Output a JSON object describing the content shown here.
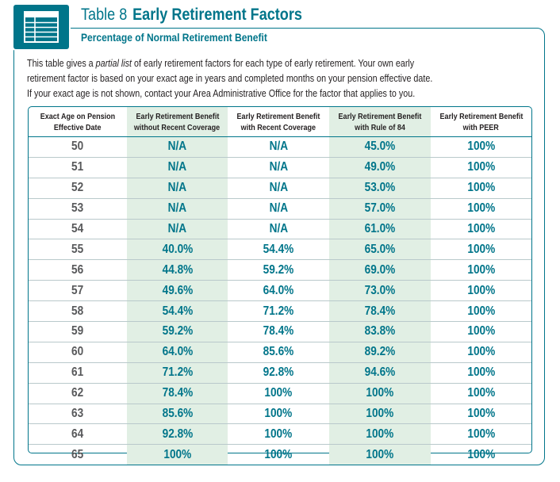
{
  "heading": {
    "table_number": "Table 8",
    "title": "Early Retirement Factors",
    "subtitle": "Percentage of Normal Retirement Benefit",
    "icon": "table-grid-icon"
  },
  "intro": {
    "line1_before": "This table gives a ",
    "line1_emphasis": "partial list",
    "line1_after": " of early retirement factors for each type of early retirement. Your own early",
    "line2": "retirement factor is based on your exact age in years and completed months on your pension effective date.",
    "line3": "If your exact age is not shown, contact your Area Administrative Office for the factor that applies to you."
  },
  "table": {
    "headers": [
      [
        "Exact Age on Pension",
        "Effective Date"
      ],
      [
        "Early Retirement Benefit",
        "without Recent Coverage"
      ],
      [
        "Early Retirement Benefit",
        "with Recent Coverage"
      ],
      [
        "Early Retirement Benefit",
        "with Rule of 84"
      ],
      [
        "Early Retirement Benefit",
        "with PEER"
      ]
    ],
    "rows": [
      [
        "50",
        "N/A",
        "N/A",
        "45.0%",
        "100%"
      ],
      [
        "51",
        "N/A",
        "N/A",
        "49.0%",
        "100%"
      ],
      [
        "52",
        "N/A",
        "N/A",
        "53.0%",
        "100%"
      ],
      [
        "53",
        "N/A",
        "N/A",
        "57.0%",
        "100%"
      ],
      [
        "54",
        "N/A",
        "N/A",
        "61.0%",
        "100%"
      ],
      [
        "55",
        "40.0%",
        "54.4%",
        "65.0%",
        "100%"
      ],
      [
        "56",
        "44.8%",
        "59.2%",
        "69.0%",
        "100%"
      ],
      [
        "57",
        "49.6%",
        "64.0%",
        "73.0%",
        "100%"
      ],
      [
        "58",
        "54.4%",
        "71.2%",
        "78.4%",
        "100%"
      ],
      [
        "59",
        "59.2%",
        "78.4%",
        "83.8%",
        "100%"
      ],
      [
        "60",
        "64.0%",
        "85.6%",
        "89.2%",
        "100%"
      ],
      [
        "61",
        "71.2%",
        "92.8%",
        "94.6%",
        "100%"
      ],
      [
        "62",
        "78.4%",
        "100%",
        "100%",
        "100%"
      ],
      [
        "63",
        "85.6%",
        "100%",
        "100%",
        "100%"
      ],
      [
        "64",
        "92.8%",
        "100%",
        "100%",
        "100%"
      ],
      [
        "65",
        "100%",
        "100%",
        "100%",
        "100%"
      ]
    ]
  },
  "colors": {
    "accent": "#00758a",
    "shade": "#e1efe4",
    "age_text": "#58595b"
  }
}
